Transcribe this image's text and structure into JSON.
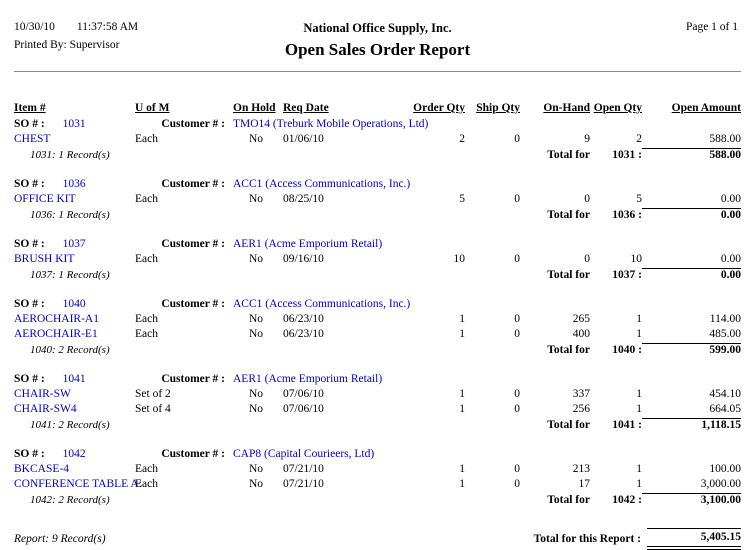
{
  "header": {
    "date": "10/30/10",
    "time": "11:37:58 AM",
    "printed_by": "Printed By: Supervisor",
    "company": "National Office Supply, Inc.",
    "title": "Open Sales Order Report",
    "page_label": "Page 1 of 1"
  },
  "table": {
    "columns": [
      "Item #",
      "U of M",
      "On Hold",
      "Req Date",
      "Order Qty",
      "Ship Qty",
      "On-Hand",
      "Open Qty",
      "Open Amount"
    ],
    "so_label": "SO # :",
    "customer_label": "Customer # :",
    "total_for_label": "Total for",
    "groups": [
      {
        "so": "1031",
        "customer": "TMO14 (Treburk Mobile Operations, Ltd)",
        "rows": [
          {
            "item": "CHEST",
            "uofm": "Each",
            "on_hold": "No",
            "req_date": "01/06/10",
            "order_qty": "2",
            "ship_qty": "0",
            "on_hand": "9",
            "open_qty": "2",
            "open_amount": "588.00"
          }
        ],
        "record_note": "1031: 1 Record(s)",
        "total_label": "1031 :",
        "total": "588.00"
      },
      {
        "so": "1036",
        "customer": "ACC1 (Access Communications, Inc.)",
        "rows": [
          {
            "item": "OFFICE KIT",
            "uofm": "Each",
            "on_hold": "No",
            "req_date": "08/25/10",
            "order_qty": "5",
            "ship_qty": "0",
            "on_hand": "0",
            "open_qty": "5",
            "open_amount": "0.00"
          }
        ],
        "record_note": "1036: 1 Record(s)",
        "total_label": "1036 :",
        "total": "0.00"
      },
      {
        "so": "1037",
        "customer": "AER1 (Acme Emporium Retail)",
        "rows": [
          {
            "item": "BRUSH KIT",
            "uofm": "Each",
            "on_hold": "No",
            "req_date": "09/16/10",
            "order_qty": "10",
            "ship_qty": "0",
            "on_hand": "0",
            "open_qty": "10",
            "open_amount": "0.00"
          }
        ],
        "record_note": "1037: 1 Record(s)",
        "total_label": "1037 :",
        "total": "0.00"
      },
      {
        "so": "1040",
        "customer": "ACC1 (Access Communications, Inc.)",
        "rows": [
          {
            "item": "AEROCHAIR-A1",
            "uofm": "Each",
            "on_hold": "No",
            "req_date": "06/23/10",
            "order_qty": "1",
            "ship_qty": "0",
            "on_hand": "265",
            "open_qty": "1",
            "open_amount": "114.00"
          },
          {
            "item": "AEROCHAIR-E1",
            "uofm": "Each",
            "on_hold": "No",
            "req_date": "06/23/10",
            "order_qty": "1",
            "ship_qty": "0",
            "on_hand": "400",
            "open_qty": "1",
            "open_amount": "485.00"
          }
        ],
        "record_note": "1040: 2 Record(s)",
        "total_label": "1040 :",
        "total": "599.00"
      },
      {
        "so": "1041",
        "customer": "AER1 (Acme Emporium Retail)",
        "rows": [
          {
            "item": "CHAIR-SW",
            "uofm": "Set of 2",
            "on_hold": "No",
            "req_date": "07/06/10",
            "order_qty": "1",
            "ship_qty": "0",
            "on_hand": "337",
            "open_qty": "1",
            "open_amount": "454.10"
          },
          {
            "item": "CHAIR-SW4",
            "uofm": "Set of 4",
            "on_hold": "No",
            "req_date": "07/06/10",
            "order_qty": "1",
            "ship_qty": "0",
            "on_hand": "256",
            "open_qty": "1",
            "open_amount": "664.05"
          }
        ],
        "record_note": "1041: 2 Record(s)",
        "total_label": "1041 :",
        "total": "1,118.15"
      },
      {
        "so": "1042",
        "customer": "CAP8 (Capital Courieers, Ltd)",
        "rows": [
          {
            "item": "BKCASE-4",
            "uofm": "Each",
            "on_hold": "No",
            "req_date": "07/21/10",
            "order_qty": "1",
            "ship_qty": "0",
            "on_hand": "213",
            "open_qty": "1",
            "open_amount": "100.00"
          },
          {
            "item": "CONFERENCE TABLE A:",
            "uofm": "Each",
            "on_hold": "No",
            "req_date": "07/21/10",
            "order_qty": "1",
            "ship_qty": "0",
            "on_hand": "17",
            "open_qty": "1",
            "open_amount": "3,000.00"
          }
        ],
        "record_note": "1042: 2 Record(s)",
        "total_label": "1042 :",
        "total": "3,100.00"
      }
    ]
  },
  "footer": {
    "record_summary": "Report: 9 Record(s)",
    "total_label": "Total for this Report :",
    "total_amount": "5,405.15"
  },
  "colors": {
    "link_blue": "#0000CC",
    "rule_gray": "#8a8a8a",
    "text": "#000000"
  }
}
